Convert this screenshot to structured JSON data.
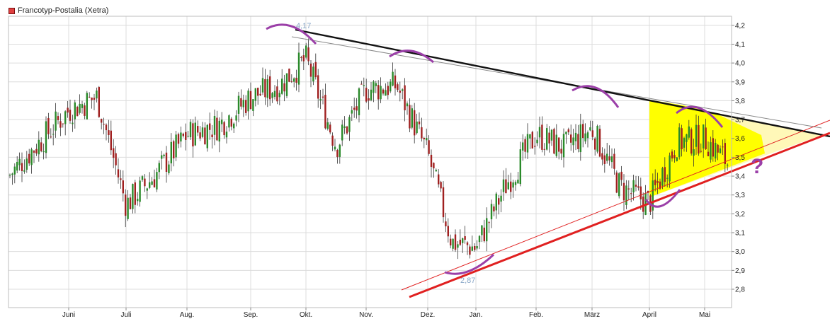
{
  "chart_data": {
    "type": "candlestick",
    "title": "",
    "legend": {
      "label": "Francotyp-Postalia (Xetra)",
      "color": "#e04040",
      "placement": "top-left"
    },
    "xlabel": "",
    "ylabel": "",
    "ylim": [
      2.72,
      4.24
    ],
    "y_axis_side": "right",
    "yticks": [
      "2,8",
      "2,9",
      "3,0",
      "3,1",
      "3,2",
      "3,3",
      "3,4",
      "3,5",
      "3,6",
      "3,7",
      "3,8",
      "3,9",
      "4,0",
      "4,1",
      "4,2"
    ],
    "x_months": [
      "Juni",
      "Juli",
      "Aug.",
      "Sep.",
      "Okt.",
      "Nov.",
      "Dez.",
      "Jan.",
      "Feb.",
      "März",
      "April",
      "Mai"
    ],
    "grid": true,
    "up_color": "#2a8a2a",
    "down_color": "#a02020",
    "annotations": {
      "peak_label": "4,17",
      "low_label": "2,87",
      "question_mark": "?"
    },
    "series_anchors": [
      [
        "start",
        3.4
      ],
      [
        "Juni",
        3.75
      ],
      [
        "Juni+",
        3.82
      ],
      [
        "Juli",
        3.25
      ],
      [
        "Juli+",
        3.4
      ],
      [
        "Aug.",
        3.62
      ],
      [
        "Aug.+",
        3.67
      ],
      [
        "Sep.",
        3.82
      ],
      [
        "Sep.+",
        3.88
      ],
      [
        "Okt.",
        4.02
      ],
      [
        "Okt.+",
        3.56
      ],
      [
        "Nov.",
        3.86
      ],
      [
        "Nov.+",
        3.88
      ],
      [
        "Dez.",
        3.52
      ],
      [
        "Dez.+",
        3.05
      ],
      [
        "Jan.",
        3.02
      ],
      [
        "Jan.+",
        3.35
      ],
      [
        "Feb.",
        3.62
      ],
      [
        "Feb.+",
        3.55
      ],
      [
        "März",
        3.65
      ],
      [
        "März+",
        3.34
      ],
      [
        "April",
        3.26
      ],
      [
        "April+",
        3.58
      ],
      [
        "Mai",
        3.6
      ],
      [
        "Mai+",
        3.45
      ]
    ],
    "trendlines": [
      {
        "name": "resistance",
        "color": "#111111"
      },
      {
        "name": "resistance-thin",
        "color": "#888888"
      },
      {
        "name": "support",
        "color": "#e02020"
      },
      {
        "name": "support-thin",
        "color": "#e02020"
      }
    ],
    "colors": {
      "triangle_fill": "#ffff00",
      "triangle_light": "#fff7b0",
      "marker": "#9b3fa8",
      "grid": "#dcdcdc"
    }
  }
}
